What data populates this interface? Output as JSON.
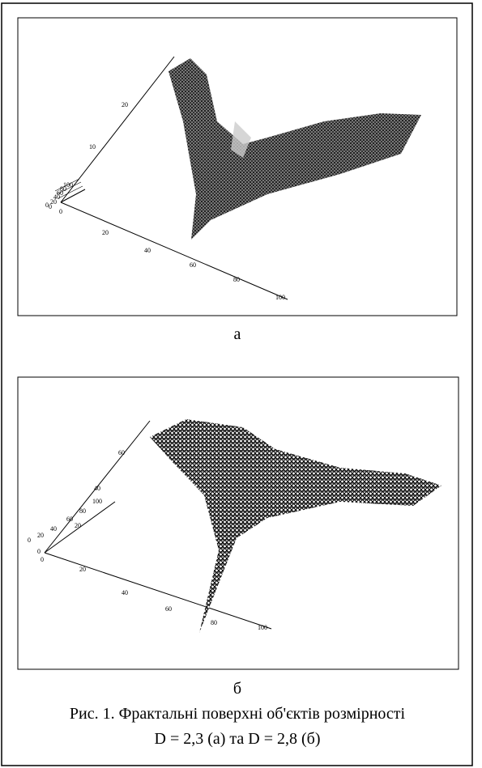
{
  "figures": [
    {
      "label": "а",
      "z_ticks": [
        "0",
        "10",
        "20"
      ],
      "side_ticks": [
        "0",
        "20",
        "40",
        "60",
        "80",
        "100"
      ],
      "x_ticks": [
        "0",
        "20",
        "40",
        "60",
        "80",
        "100"
      ]
    },
    {
      "label": "б",
      "z_ticks": [
        "0",
        "20",
        "40",
        "60"
      ],
      "side_ticks": [
        "0",
        "20",
        "40",
        "60",
        "80",
        "100"
      ],
      "x_ticks": [
        "0",
        "20",
        "40",
        "60",
        "80",
        "100"
      ]
    }
  ],
  "caption": {
    "line1": "Рис. 1. Фрактальні поверхні об'єктів розмірності",
    "line2": "D = 2,3 (а) та D = 2,8 (б)"
  }
}
